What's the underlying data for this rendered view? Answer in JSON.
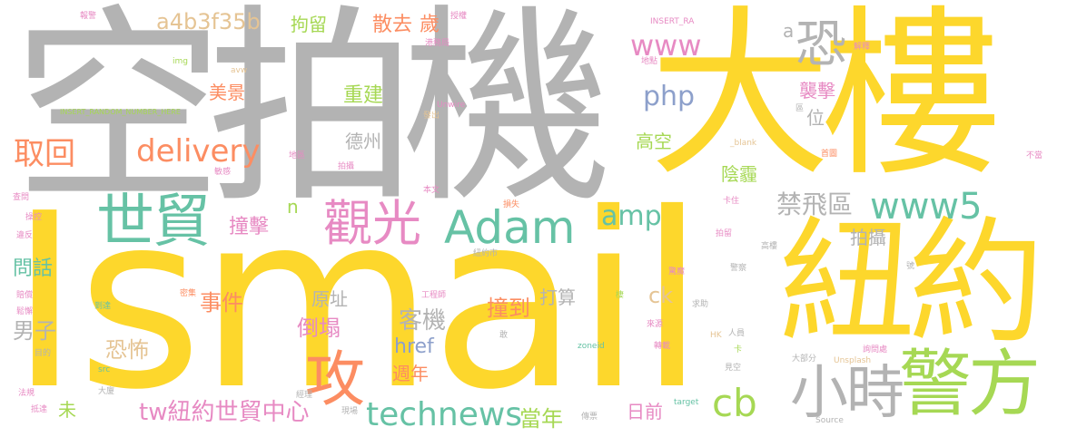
{
  "cloud": {
    "palette": {
      "yellow": "#fdd72c",
      "gray": "#b3b3b3",
      "green": "#66c2a5",
      "pink": "#e78ac3",
      "lime": "#a6d854",
      "orange": "#fc8d62",
      "tan": "#e5c494",
      "blue": "#8da0cb"
    },
    "words": [
      {
        "text": "Ismail",
        "color": "yellow"
      },
      {
        "text": "空拍機",
        "color": "gray"
      },
      {
        "text": "大樓",
        "color": "yellow"
      },
      {
        "text": "紐約",
        "color": "yellow"
      },
      {
        "text": "警方",
        "color": "lime"
      },
      {
        "text": "小時",
        "color": "gray"
      },
      {
        "text": "世貿",
        "color": "green"
      },
      {
        "text": "觀光",
        "color": "pink"
      },
      {
        "text": "Adam",
        "color": "green"
      },
      {
        "text": "攻",
        "color": "orange"
      },
      {
        "text": "www5",
        "color": "green"
      },
      {
        "text": "technews",
        "color": "green"
      },
      {
        "text": "delivery",
        "color": "orange"
      },
      {
        "text": "取回",
        "color": "orange"
      },
      {
        "text": "www",
        "color": "pink"
      },
      {
        "text": "恐",
        "color": "gray"
      },
      {
        "text": "cb",
        "color": "lime"
      },
      {
        "text": "tw紐約世貿中心",
        "color": "pink"
      },
      {
        "text": "amp",
        "color": "green"
      },
      {
        "text": "php",
        "color": "blue"
      },
      {
        "text": "禁飛區",
        "color": "gray"
      },
      {
        "text": "a4b3f35b",
        "color": "tan"
      },
      {
        "text": "客機",
        "color": "gray"
      },
      {
        "text": "href",
        "color": "blue"
      },
      {
        "text": "ck",
        "color": "tan"
      },
      {
        "text": "男子",
        "color": "gray"
      },
      {
        "text": "恐怖",
        "color": "tan"
      },
      {
        "text": "事件",
        "color": "orange"
      },
      {
        "text": "倒塌",
        "color": "pink"
      },
      {
        "text": "撞到",
        "color": "orange"
      },
      {
        "text": "當年",
        "color": "lime"
      },
      {
        "text": "原址",
        "color": "gray"
      },
      {
        "text": "週年",
        "color": "orange"
      },
      {
        "text": "問話",
        "color": "green"
      },
      {
        "text": "撞擊",
        "color": "pink"
      },
      {
        "text": "美景",
        "color": "orange"
      },
      {
        "text": "拘留",
        "color": "lime"
      },
      {
        "text": "散去",
        "color": "orange"
      },
      {
        "text": "歲",
        "color": "orange"
      },
      {
        "text": "重建",
        "color": "lime"
      },
      {
        "text": "德州",
        "color": "gray"
      },
      {
        "text": "高空",
        "color": "lime"
      },
      {
        "text": "陰霾",
        "color": "lime"
      },
      {
        "text": "襲擊",
        "color": "pink"
      },
      {
        "text": "位",
        "color": "gray"
      },
      {
        "text": "拍攝",
        "color": "gray"
      },
      {
        "text": "打算",
        "color": "gray"
      },
      {
        "text": "日前",
        "color": "pink"
      },
      {
        "text": "未",
        "color": "lime"
      },
      {
        "text": "a",
        "color": "gray"
      },
      {
        "text": "n",
        "color": "lime"
      },
      {
        "text": "報警",
        "color": "pink"
      },
      {
        "text": "img",
        "color": "lime"
      },
      {
        "text": "avw",
        "color": "tan"
      },
      {
        "text": "INSERT_RANDOM_NUMBER_HERE",
        "color": "lime"
      },
      {
        "text": "港務局",
        "color": "pink"
      },
      {
        "text": "授權",
        "color": "pink"
      },
      {
        "text": "INSERT_RA",
        "color": "pink"
      },
      {
        "text": "地點",
        "color": "pink"
      },
      {
        "text": "解釋",
        "color": "pink"
      },
      {
        "text": "發出",
        "color": "tan"
      },
      {
        "text": "Unwire",
        "color": "pink"
      },
      {
        "text": "區",
        "color": "gray"
      },
      {
        "text": "_blank",
        "color": "tan"
      },
      {
        "text": "首圖",
        "color": "orange"
      },
      {
        "text": "地區",
        "color": "pink"
      },
      {
        "text": "拍攝",
        "color": "pink"
      },
      {
        "text": "敏感",
        "color": "pink"
      },
      {
        "text": "不當",
        "color": "pink"
      },
      {
        "text": "本文",
        "color": "pink"
      },
      {
        "text": "損失",
        "color": "orange"
      },
      {
        "text": "卡住",
        "color": "pink"
      },
      {
        "text": "查問",
        "color": "pink"
      },
      {
        "text": "操控",
        "color": "pink"
      },
      {
        "text": "違反",
        "color": "pink"
      },
      {
        "text": "拍留",
        "color": "pink"
      },
      {
        "text": "紐約市",
        "color": "gray"
      },
      {
        "text": "高樓",
        "color": "gray"
      },
      {
        "text": "號",
        "color": "gray"
      },
      {
        "text": "驚魔",
        "color": "pink"
      },
      {
        "text": "警察",
        "color": "gray"
      },
      {
        "text": "賠償",
        "color": "pink"
      },
      {
        "text": "密集",
        "color": "orange"
      },
      {
        "text": "工程師",
        "color": "pink"
      },
      {
        "text": "棲",
        "color": "lime"
      },
      {
        "text": "求助",
        "color": "gray"
      },
      {
        "text": "鬆懈",
        "color": "pink"
      },
      {
        "text": "到達",
        "color": "green"
      },
      {
        "text": "來源",
        "color": "pink"
      },
      {
        "text": "人員",
        "color": "gray"
      },
      {
        "text": "HK",
        "color": "tan"
      },
      {
        "text": "目的",
        "color": "gray"
      },
      {
        "text": "敢",
        "color": "gray"
      },
      {
        "text": "zoneid",
        "color": "green"
      },
      {
        "text": "轉載",
        "color": "pink"
      },
      {
        "text": "卡",
        "color": "lime"
      },
      {
        "text": "詢問處",
        "color": "pink"
      },
      {
        "text": "大部分",
        "color": "gray"
      },
      {
        "text": "Unsplash",
        "color": "tan"
      },
      {
        "text": "src",
        "color": "green"
      },
      {
        "text": "見空",
        "color": "gray"
      },
      {
        "text": "法規",
        "color": "pink"
      },
      {
        "text": "大廈",
        "color": "gray"
      },
      {
        "text": "經理",
        "color": "gray"
      },
      {
        "text": "target",
        "color": "green"
      },
      {
        "text": "抵達",
        "color": "pink"
      },
      {
        "text": "現場",
        "color": "gray"
      },
      {
        "text": "傳票",
        "color": "gray"
      },
      {
        "text": "Source",
        "color": "gray"
      }
    ]
  }
}
